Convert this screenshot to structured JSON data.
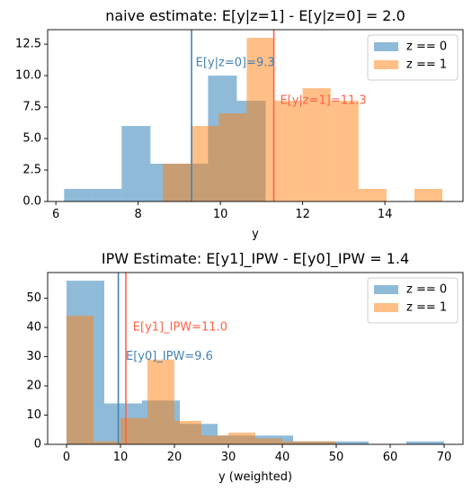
{
  "chart_data": [
    {
      "type": "histogram",
      "title": "naive estimate: E[y|z=1] - E[y|z=0] = 2.0",
      "xlabel": "y",
      "ylabel": "",
      "xlim": [
        5.8,
        15.9
      ],
      "ylim": [
        0,
        13.65
      ],
      "xticks": [
        6,
        8,
        10,
        12,
        14
      ],
      "yticks": [
        0.0,
        2.5,
        5.0,
        7.5,
        10.0,
        12.5
      ],
      "ytick_labels": [
        "0.0",
        "2.5",
        "5.0",
        "7.5",
        "10.0",
        "12.5"
      ],
      "legend_position": "top-right",
      "grid": false,
      "series": [
        {
          "name": "z == 0",
          "color": "#1f77b4",
          "alpha": 0.5,
          "bins": [
            6.2,
            6.9,
            7.6,
            8.3,
            9.0,
            9.7,
            10.4,
            11.1
          ],
          "counts": [
            1,
            1,
            6,
            3,
            3,
            10,
            8
          ]
        },
        {
          "name": "z == 1",
          "color": "#ff7f0e",
          "alpha": 0.5,
          "bins": [
            8.6,
            9.28,
            9.96,
            10.64,
            11.32,
            12.0,
            12.68,
            13.36,
            14.04,
            14.72,
            15.4
          ],
          "counts": [
            3,
            6,
            7,
            13,
            8,
            9,
            8,
            1,
            0,
            1
          ]
        }
      ],
      "vlines": [
        {
          "x": 9.3,
          "color": "#4682b4"
        },
        {
          "x": 11.3,
          "color": "#ff6347"
        }
      ],
      "annotations": [
        {
          "text": "E[y|z=0]=9.3",
          "x": 9.4,
          "y": 11.0,
          "color": "#4682b4"
        },
        {
          "text": "E[y|z=1]=11.3",
          "x": 11.45,
          "y": 8.0,
          "color": "#ff6347"
        }
      ]
    },
    {
      "type": "histogram",
      "title": "IPW Estimate: E[y1]_IPW - E[y0]_IPW = 1.4",
      "xlabel": "y (weighted)",
      "ylabel": "",
      "xlim": [
        -3.5,
        73.5
      ],
      "ylim": [
        0,
        58.8
      ],
      "xticks": [
        0,
        10,
        20,
        30,
        40,
        50,
        60,
        70
      ],
      "yticks": [
        0,
        10,
        20,
        30,
        40,
        50
      ],
      "ytick_labels": [
        "0",
        "10",
        "20",
        "30",
        "40",
        "50"
      ],
      "legend_position": "top-right",
      "grid": false,
      "series": [
        {
          "name": "z == 0",
          "color": "#1f77b4",
          "alpha": 0.5,
          "bins": [
            0,
            7,
            14,
            21,
            28,
            35,
            42,
            49,
            56,
            63,
            70
          ],
          "counts": [
            56,
            14,
            15,
            7,
            3,
            3,
            1,
            1,
            0,
            1
          ]
        },
        {
          "name": "z == 1",
          "color": "#ff7f0e",
          "alpha": 0.5,
          "bins": [
            0,
            5,
            10,
            15,
            20,
            25,
            30,
            35,
            40,
            45,
            50
          ],
          "counts": [
            44,
            1,
            9,
            29,
            8,
            3,
            4,
            2,
            1,
            1
          ]
        }
      ],
      "vlines": [
        {
          "x": 9.6,
          "color": "#4682b4"
        },
        {
          "x": 11.0,
          "color": "#ff6347"
        }
      ],
      "annotations": [
        {
          "text": "E[y1]_IPW=11.0",
          "x": 12.3,
          "y": 40.0,
          "color": "#ff6347"
        },
        {
          "text": "E[y0]_IPW=9.6",
          "x": 11.0,
          "y": 30.0,
          "color": "#4682b4"
        }
      ]
    }
  ]
}
